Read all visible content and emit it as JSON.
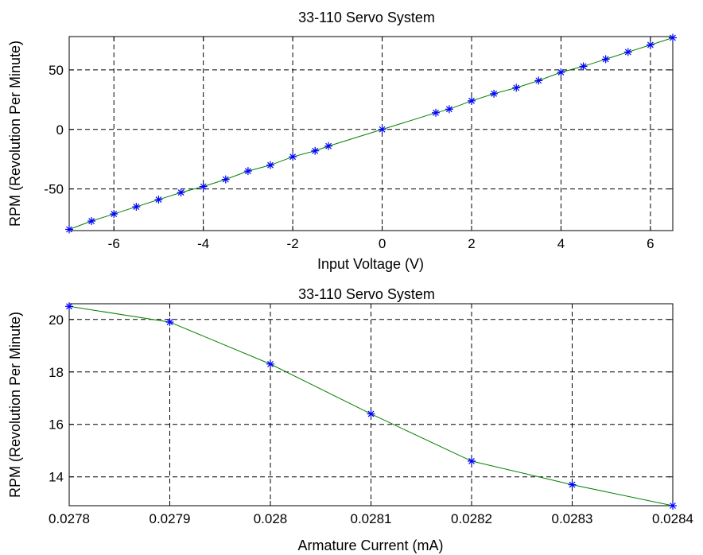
{
  "chart_data": [
    {
      "type": "line",
      "title": "33-110 Servo System",
      "xlabel": "Input Voltage (V)",
      "ylabel": "RPM (Revolution Per Minute)",
      "xlim": [
        -7,
        6.5
      ],
      "ylim": [
        -85,
        78
      ],
      "xticks": [
        -6,
        -4,
        -2,
        0,
        2,
        4,
        6
      ],
      "xtick_labels": [
        "-6",
        "-4",
        "-2",
        "0",
        "2",
        "4",
        "6"
      ],
      "yticks": [
        -50,
        0,
        50
      ],
      "ytick_labels": [
        "-50",
        "0",
        "50"
      ],
      "grid": true,
      "series": [
        {
          "line_color": "#008000",
          "marker_color": "#0000ff",
          "marker": "asterisk",
          "x": [
            -7,
            -6.5,
            -6,
            -5.5,
            -5,
            -4.5,
            -4,
            -3.5,
            -3,
            -2.5,
            -2,
            -1.5,
            -1.2,
            0,
            1.2,
            1.5,
            2,
            2.5,
            3,
            3.5,
            4,
            4.5,
            5,
            5.5,
            6,
            6.5
          ],
          "y": [
            -84,
            -77,
            -71,
            -65,
            -59,
            -53,
            -48,
            -42,
            -35,
            -30,
            -23,
            -18,
            -14,
            0,
            14,
            17,
            24,
            30,
            35,
            41,
            48,
            53,
            59,
            65,
            71,
            77
          ]
        }
      ]
    },
    {
      "type": "line",
      "title": "33-110 Servo System",
      "xlabel": "Armature Current (mA)",
      "ylabel": "RPM (Revolution Per Minute)",
      "xlim": [
        0.0278,
        0.0284
      ],
      "ylim": [
        12.9,
        20.6
      ],
      "xticks": [
        0.0278,
        0.0279,
        0.028,
        0.0281,
        0.0282,
        0.0283,
        0.0284
      ],
      "xtick_labels": [
        "0.0278",
        "0.0279",
        "0.028",
        "0.0281",
        "0.0282",
        "0.0283",
        "0.0284"
      ],
      "yticks": [
        14,
        16,
        18,
        20
      ],
      "ytick_labels": [
        "14",
        "16",
        "18",
        "20"
      ],
      "grid": true,
      "series": [
        {
          "line_color": "#008000",
          "marker_color": "#0000ff",
          "marker": "asterisk",
          "x": [
            0.0278,
            0.0279,
            0.028,
            0.0281,
            0.0282,
            0.0283,
            0.0284
          ],
          "y": [
            20.5,
            19.9,
            18.3,
            16.4,
            14.6,
            13.7,
            12.9
          ]
        }
      ]
    }
  ]
}
